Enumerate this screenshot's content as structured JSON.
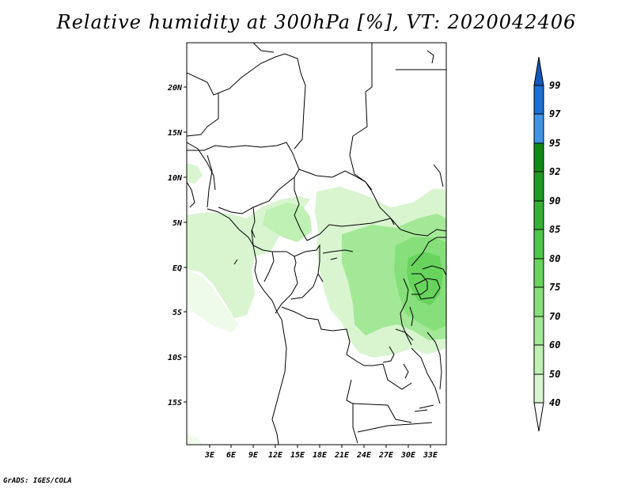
{
  "title": "Relative humidity at 300hPa [%], VT: 2020042406",
  "credit": "GrADS: IGES/COLA",
  "colors": {
    "level_40": "#eefbea",
    "level_50": "#d8f5d0",
    "level_60": "#bff0b4",
    "level_70": "#a3e897",
    "level_75": "#86df7a",
    "level_80": "#68d45e",
    "level_85": "#4fc648",
    "level_90": "#35b233",
    "level_92": "#1f9a22",
    "level_95": "#0f8a16",
    "level_97": "#3f94e6",
    "level_99": "#1e6fd6",
    "over_99": "#1458b8",
    "border": "#000000"
  },
  "map": {
    "lat_labels": [
      "20N",
      "15N",
      "10N",
      "5N",
      "EQ",
      "5S",
      "10S",
      "15S"
    ],
    "lon_labels": [
      "3E",
      "6E",
      "9E",
      "12E",
      "15E",
      "18E",
      "21E",
      "24E",
      "27E",
      "30E",
      "33E"
    ]
  },
  "colorbar": {
    "levels": [
      "99",
      "97",
      "95",
      "92",
      "90",
      "85",
      "80",
      "75",
      "70",
      "60",
      "50",
      "40"
    ]
  }
}
